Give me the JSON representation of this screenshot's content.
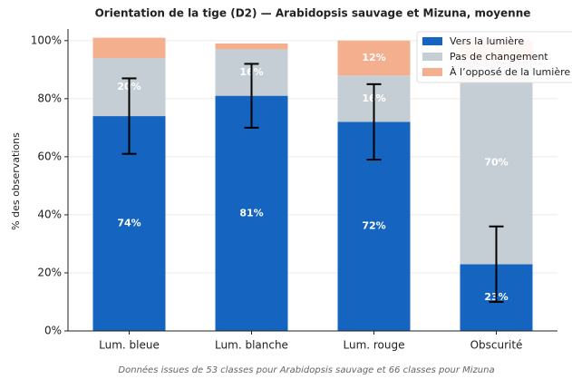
{
  "chart_data": {
    "type": "stacked_bar",
    "title": "Orientation de la tige (D2) — Arabidopsis sauvage et Mizuna, moyenne",
    "ylabel": "% des observations",
    "footnote": "Données issues de 53 classes pour Arabidopsis sauvage et 66 classes pour Mizuna",
    "categories": [
      "Lum. bleue",
      "Lum. blanche",
      "Lum. rouge",
      "Obscurité"
    ],
    "series": [
      {
        "name": "Vers la lumière",
        "color": "#1565c0",
        "values": [
          74,
          81,
          72,
          23
        ],
        "value_labels": [
          "74%",
          "81%",
          "72%",
          "23%"
        ],
        "errors": [
          13,
          11,
          13,
          13
        ]
      },
      {
        "name": "Pas de changement",
        "color": "#c5ced4",
        "values": [
          20,
          16,
          16,
          70
        ],
        "value_labels": [
          "20%",
          "16%",
          "16%",
          "70%"
        ]
      },
      {
        "name": "À l’opposé de la lumière",
        "color": "#f4b08e",
        "values": [
          7,
          2,
          12,
          7
        ],
        "value_labels": [
          null,
          null,
          "12%",
          null
        ]
      }
    ],
    "ylim": [
      0,
      104
    ],
    "yticks": [
      {
        "value": 0,
        "label": "0%"
      },
      {
        "value": 20,
        "label": "20%"
      },
      {
        "value": 40,
        "label": "40%"
      },
      {
        "value": 60,
        "label": "60%"
      },
      {
        "value": 80,
        "label": "80%"
      },
      {
        "value": 100,
        "label": "100%"
      }
    ],
    "grid": true,
    "legend": "upper right"
  }
}
